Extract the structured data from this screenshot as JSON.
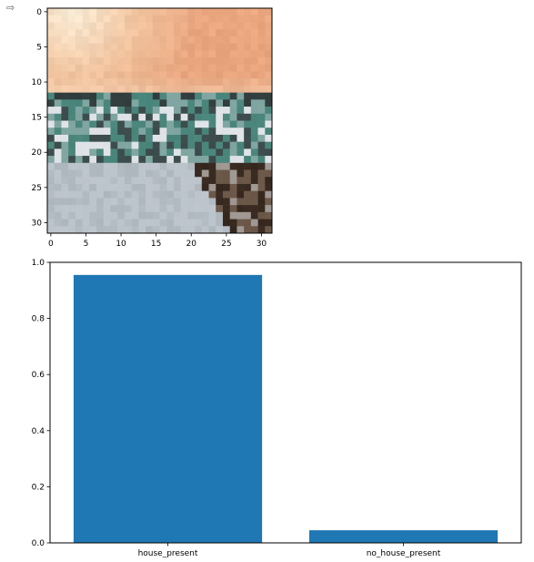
{
  "cell": {
    "output_icon": "export-output-icon",
    "output_glyph": "⇨"
  },
  "chart_data": [
    {
      "type": "heatmap",
      "description_type": "image",
      "width": 32,
      "height": 32,
      "x_ticks": [
        "0",
        "5",
        "10",
        "15",
        "20",
        "25",
        "30"
      ],
      "y_ticks": [
        "0",
        "5",
        "10",
        "15",
        "20",
        "25",
        "30"
      ],
      "xlim": [
        -0.5,
        31.5
      ],
      "ylim": [
        31.5,
        -0.5
      ],
      "title": "",
      "xlabel": "",
      "ylabel": "",
      "colors": {
        "sky_light": "#fbefd9",
        "sky_peach": "#f1c49f",
        "sky_orange": "#e9a67f",
        "sea_teal": "#4f8a80",
        "sea_dark": "#3a4a4a",
        "road_gray": "#b4bcc4",
        "road_light": "#c9cfd5",
        "rocks_dark": "#3b2d23",
        "rocks_brown": "#6a5646"
      }
    },
    {
      "type": "bar",
      "categories": [
        "house_present",
        "no_house_present"
      ],
      "values": [
        0.955,
        0.045
      ],
      "ylim": [
        0.0,
        1.0
      ],
      "y_ticks": [
        "0.0",
        "0.2",
        "0.4",
        "0.6",
        "0.8",
        "1.0"
      ],
      "bar_color": "#1f77b4",
      "title": "",
      "xlabel": "",
      "ylabel": "",
      "grid": false,
      "legend": "none"
    }
  ]
}
